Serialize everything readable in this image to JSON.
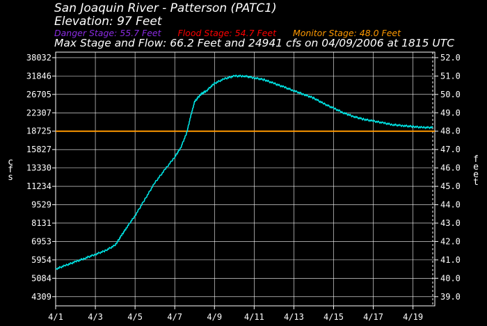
{
  "header": {
    "title": "San Joaquin River - Patterson (PATC1)",
    "elevation": "Elevation: 97 Feet",
    "danger_stage": "Danger Stage: 55.7 Feet",
    "flood_stage": "Flood Stage: 54.7 Feet",
    "monitor_stage": "Monitor Stage: 48.0 Feet",
    "max_line": "Max Stage and Flow: 66.2 Feet and 24941 cfs on 04/09/2006 at 1815 UTC"
  },
  "colors": {
    "background": "#000000",
    "grid": "#ffffff",
    "series": "#00e5e5",
    "danger": "#8a2be2",
    "flood": "#ff0000",
    "monitor": "#ff9900",
    "text": "#ffffff"
  },
  "chart_data": {
    "type": "line",
    "title": "San Joaquin River - Patterson (PATC1)",
    "xlabel": "",
    "ylabel_left": "cfs",
    "ylabel_right": "feet",
    "x_tick_labels": [
      "4/1",
      "4/3",
      "4/5",
      "4/7",
      "4/9",
      "4/11",
      "4/13",
      "4/15",
      "4/17",
      "4/19"
    ],
    "x_tick_days": [
      1,
      3,
      5,
      7,
      9,
      11,
      13,
      15,
      17,
      19
    ],
    "xlim_days": [
      1,
      20.1
    ],
    "now_marker_day": 20.1,
    "y_right_ticks": [
      "39.0",
      "40.0",
      "41.0",
      "42.0",
      "43.0",
      "44.0",
      "45.0",
      "46.0",
      "47.0",
      "48.0",
      "49.0",
      "50.0",
      "51.0",
      "52.0"
    ],
    "y_left_ticks": [
      "4309",
      "5084",
      "5954",
      "6953",
      "8131",
      "9529",
      "11234",
      "13330",
      "15827",
      "18725",
      "22307",
      "26705",
      "31846",
      "38032"
    ],
    "ylim_feet": [
      38.5,
      52.3
    ],
    "grid": true,
    "monitor_stage_feet": 48.0,
    "series": [
      {
        "x": [
          1.0,
          1.5,
          2.0,
          2.5,
          3.0,
          3.5,
          4.0,
          4.3,
          4.6,
          5.0,
          5.5,
          6.0,
          6.5,
          7.0,
          7.3,
          7.6,
          7.8,
          8.0,
          8.3,
          8.6,
          9.0,
          9.5,
          10.0,
          10.5,
          11.0,
          11.5,
          12.0,
          12.5,
          13.0,
          13.5,
          14.0,
          14.5,
          15.0,
          15.5,
          16.0,
          16.5,
          17.0,
          17.5,
          18.0,
          18.5,
          19.0,
          19.5,
          20.0
        ],
        "y": [
          40.5,
          40.7,
          40.9,
          41.1,
          41.3,
          41.5,
          41.8,
          42.3,
          42.8,
          43.4,
          44.3,
          45.2,
          45.9,
          46.6,
          47.1,
          47.9,
          48.8,
          49.6,
          50.0,
          50.2,
          50.6,
          50.85,
          51.0,
          51.0,
          50.9,
          50.8,
          50.6,
          50.4,
          50.2,
          50.0,
          49.8,
          49.5,
          49.25,
          49.0,
          48.8,
          48.65,
          48.55,
          48.45,
          48.35,
          48.3,
          48.25,
          48.2,
          48.2
        ]
      }
    ]
  }
}
